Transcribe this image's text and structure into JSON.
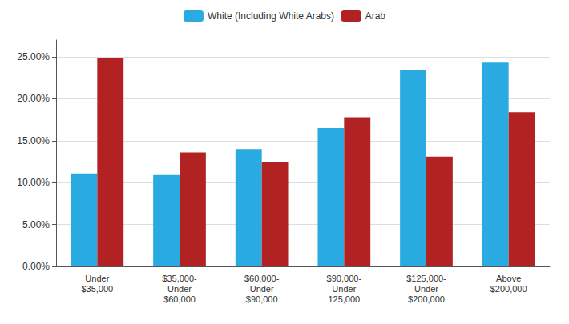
{
  "chart_data": {
    "type": "bar",
    "categories": [
      "Under\n$35,000",
      "$35,000-\nUnder\n$60,000",
      "$60,000-\nUnder\n$90,000",
      "$90,000-\nUnder\n125,000",
      "$125,000-\nUnder\n$200,000",
      "Above\n$200,000"
    ],
    "series": [
      {
        "name": "White (Including White Arabs)",
        "color": "#29ABE2",
        "values": [
          0.111,
          0.109,
          0.14,
          0.165,
          0.234,
          0.243
        ]
      },
      {
        "name": "Arab",
        "color": "#B22222",
        "values": [
          0.249,
          0.136,
          0.124,
          0.178,
          0.131,
          0.184
        ]
      }
    ],
    "ylim": [
      0,
      0.27
    ],
    "yticks": [
      {
        "value": 0.0,
        "label": "0.00%"
      },
      {
        "value": 0.05,
        "label": "5.00%"
      },
      {
        "value": 0.1,
        "label": "10.00%"
      },
      {
        "value": 0.15,
        "label": "15.00%"
      },
      {
        "value": 0.2,
        "label": "20.00%"
      },
      {
        "value": 0.25,
        "label": "25.00%"
      }
    ],
    "grid": true,
    "legend": "top"
  }
}
